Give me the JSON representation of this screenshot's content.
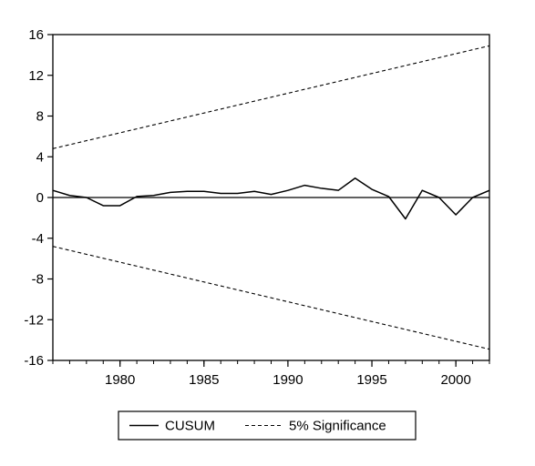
{
  "chart_data": {
    "type": "line",
    "title": "",
    "xlabel": "",
    "ylabel": "",
    "xlim": [
      1976,
      2002
    ],
    "ylim": [
      -16,
      16
    ],
    "yticks": [
      16,
      12,
      8,
      4,
      0,
      -4,
      -8,
      -12,
      -16
    ],
    "ytick_labels": [
      "16",
      "12",
      "8",
      "4",
      "0",
      "-4",
      "-8",
      "-12",
      "-16"
    ],
    "xticks": [
      1980,
      1985,
      1990,
      1995,
      2000
    ],
    "xtick_labels": [
      "1980",
      "1985",
      "1990",
      "1995",
      "2000"
    ],
    "zero_line": true,
    "grid": false,
    "legend_position": "bottom",
    "series": [
      {
        "name": "CUSUM",
        "style": "solid",
        "x": [
          1976,
          1977,
          1978,
          1979,
          1980,
          1981,
          1982,
          1983,
          1984,
          1985,
          1986,
          1987,
          1988,
          1989,
          1990,
          1991,
          1992,
          1993,
          1994,
          1995,
          1996,
          1997,
          1998,
          1999,
          2000,
          2001,
          2002
        ],
        "values": [
          0.7,
          0.2,
          0.0,
          -0.8,
          -0.8,
          0.1,
          0.2,
          0.5,
          0.6,
          0.6,
          0.4,
          0.4,
          0.6,
          0.3,
          0.7,
          1.2,
          0.9,
          0.7,
          1.9,
          0.8,
          0.1,
          -2.1,
          0.7,
          0.0,
          -1.7,
          0.0,
          0.7
        ]
      },
      {
        "name": "5% Significance",
        "style": "dashed",
        "x": [
          1976,
          2002
        ],
        "values": [
          4.8,
          14.9
        ]
      },
      {
        "name": "5% Significance",
        "style": "dashed",
        "x": [
          1976,
          2002
        ],
        "values": [
          -4.8,
          -14.9
        ]
      }
    ]
  },
  "legend": {
    "items": [
      {
        "label": "CUSUM",
        "style": "solid"
      },
      {
        "label": "5% Significance",
        "style": "dashed"
      }
    ]
  },
  "colors": {
    "line": "#000000",
    "background": "#ffffff"
  }
}
